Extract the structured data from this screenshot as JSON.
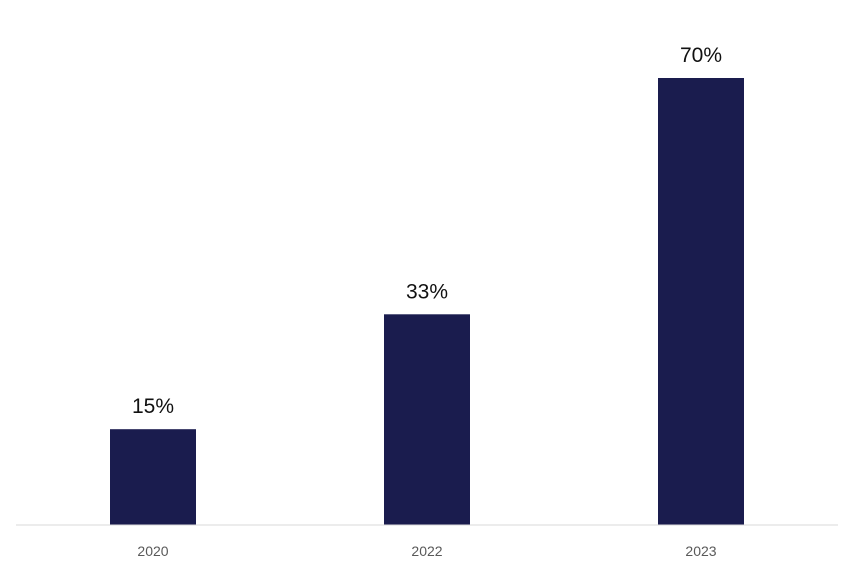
{
  "chart_data": {
    "type": "bar",
    "categories": [
      "2020",
      "2022",
      "2023"
    ],
    "values": [
      15,
      33,
      70
    ],
    "data_labels": [
      "15%",
      "33%",
      "70%"
    ],
    "title": "",
    "xlabel": "",
    "ylabel": "",
    "ylim": [
      0,
      70
    ],
    "grid": false,
    "legend": "none",
    "bar_color": "#1a1c4e",
    "axis_color": "#d9d9d9"
  }
}
